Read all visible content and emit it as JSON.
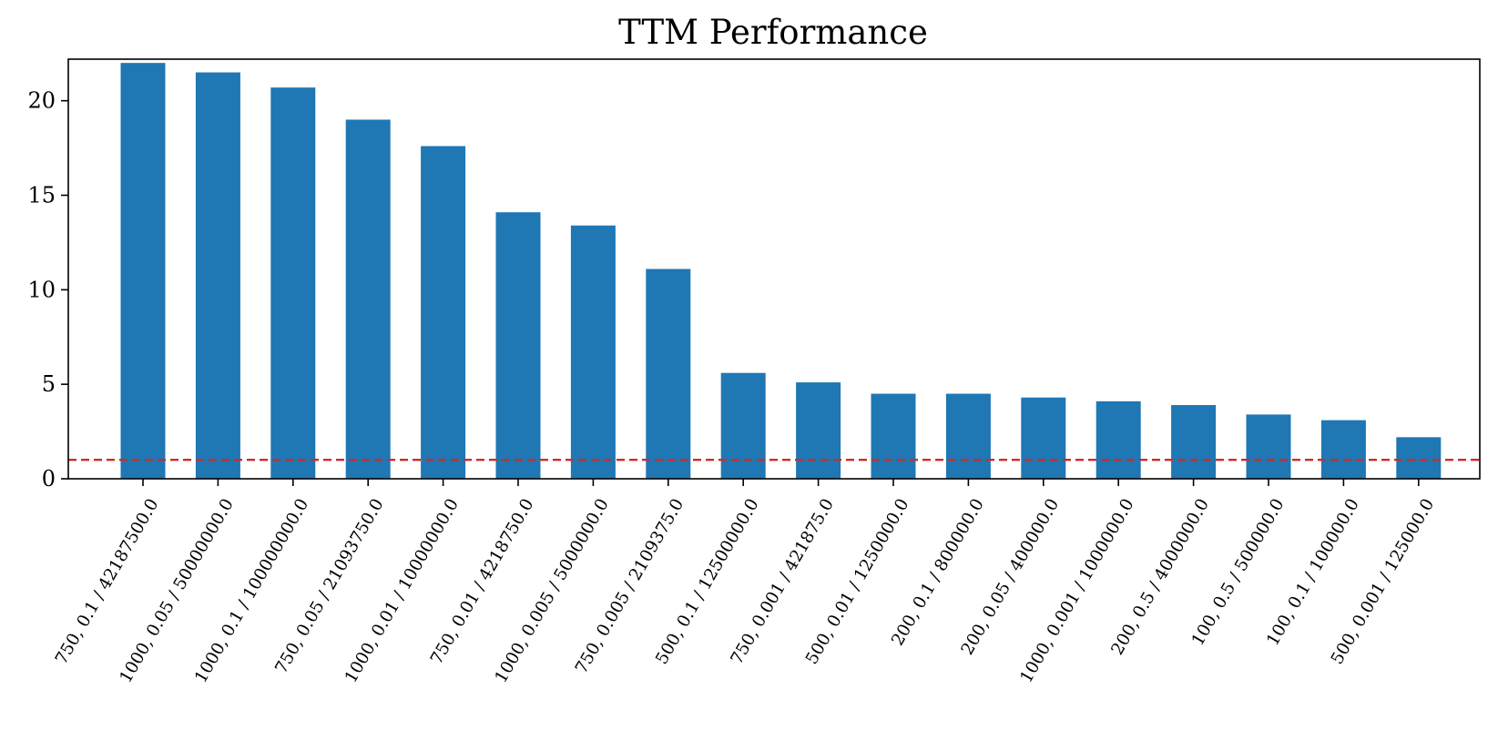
{
  "chart_data": {
    "type": "bar",
    "title": "TTM Performance",
    "xlabel": "",
    "ylabel": "",
    "categories": [
      "750, 0.1 / 42187500.0",
      "1000, 0.05 / 50000000.0",
      "1000, 0.1 / 100000000.0",
      "750, 0.05 / 21093750.0",
      "1000, 0.01 / 10000000.0",
      "750, 0.01 / 4218750.0",
      "1000, 0.005 / 5000000.0",
      "750, 0.005 / 2109375.0",
      "500, 0.1 / 12500000.0",
      "750, 0.001 / 421875.0",
      "500, 0.01 / 1250000.0",
      "200, 0.1 / 800000.0",
      "200, 0.05 / 400000.0",
      "1000, 0.001 / 1000000.0",
      "200, 0.5 / 4000000.0",
      "100, 0.5 / 500000.0",
      "100, 0.1 / 100000.0",
      "500, 0.001 / 125000.0"
    ],
    "values": [
      22.0,
      21.5,
      20.7,
      19.0,
      17.6,
      14.1,
      13.4,
      11.1,
      5.6,
      5.1,
      4.5,
      4.5,
      4.3,
      4.1,
      3.9,
      3.4,
      3.1,
      2.2
    ],
    "yticks": [
      0,
      5,
      10,
      15,
      20
    ],
    "ylim": [
      0,
      22.2
    ],
    "reference_line": {
      "y": 1.0,
      "style": "dashed",
      "color": "#d62728"
    },
    "bar_color": "#1f77b4",
    "grid": false,
    "legend": "none"
  }
}
